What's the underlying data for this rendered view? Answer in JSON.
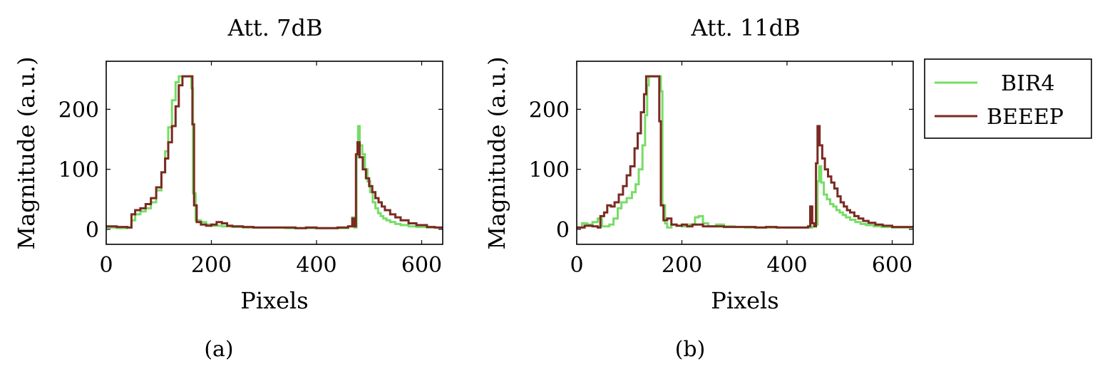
{
  "chart_data": [
    {
      "type": "line",
      "title": "Att. 7dB",
      "caption": "(a)",
      "xlabel": "Pixels",
      "ylabel": "Magnitude (a.u.)",
      "xlim": [
        0,
        640
      ],
      "ylim": [
        -25,
        280
      ],
      "xticks": [
        0,
        200,
        400,
        600
      ],
      "yticks": [
        0,
        100,
        200
      ],
      "series": [
        {
          "name": "BIR4",
          "color": "#77dd66",
          "points": [
            [
              0,
              3
            ],
            [
              20,
              2
            ],
            [
              40,
              3
            ],
            [
              48,
              15
            ],
            [
              55,
              25
            ],
            [
              65,
              30
            ],
            [
              75,
              35
            ],
            [
              85,
              45
            ],
            [
              95,
              65
            ],
            [
              105,
              95
            ],
            [
              112,
              130
            ],
            [
              118,
              170
            ],
            [
              125,
              215
            ],
            [
              132,
              245
            ],
            [
              138,
              255
            ],
            [
              160,
              255
            ],
            [
              162,
              235
            ],
            [
              165,
              60
            ],
            [
              170,
              15
            ],
            [
              180,
              12
            ],
            [
              190,
              8
            ],
            [
              200,
              6
            ],
            [
              220,
              5
            ],
            [
              240,
              4
            ],
            [
              260,
              3
            ],
            [
              280,
              3
            ],
            [
              300,
              3
            ],
            [
              320,
              3
            ],
            [
              340,
              2
            ],
            [
              360,
              2
            ],
            [
              380,
              2
            ],
            [
              400,
              2
            ],
            [
              420,
              2
            ],
            [
              440,
              2
            ],
            [
              460,
              5
            ],
            [
              468,
              20
            ],
            [
              472,
              3
            ],
            [
              476,
              120
            ],
            [
              479,
              172
            ],
            [
              482,
              140
            ],
            [
              487,
              125
            ],
            [
              492,
              100
            ],
            [
              497,
              80
            ],
            [
              502,
              62
            ],
            [
              507,
              45
            ],
            [
              512,
              35
            ],
            [
              517,
              27
            ],
            [
              522,
              22
            ],
            [
              527,
              18
            ],
            [
              533,
              15
            ],
            [
              540,
              12
            ],
            [
              550,
              9
            ],
            [
              560,
              7
            ],
            [
              575,
              5
            ],
            [
              590,
              4
            ],
            [
              610,
              3
            ],
            [
              625,
              3
            ],
            [
              640,
              3
            ]
          ]
        },
        {
          "name": "BEEEP",
          "color": "#7a2a22",
          "points": [
            [
              0,
              5
            ],
            [
              20,
              4
            ],
            [
              40,
              3
            ],
            [
              48,
              25
            ],
            [
              55,
              32
            ],
            [
              65,
              35
            ],
            [
              75,
              42
            ],
            [
              85,
              52
            ],
            [
              95,
              70
            ],
            [
              105,
              95
            ],
            [
              112,
              118
            ],
            [
              118,
              145
            ],
            [
              125,
              172
            ],
            [
              132,
              205
            ],
            [
              138,
              240
            ],
            [
              145,
              255
            ],
            [
              162,
              255
            ],
            [
              164,
              175
            ],
            [
              167,
              40
            ],
            [
              172,
              12
            ],
            [
              180,
              8
            ],
            [
              190,
              6
            ],
            [
              200,
              8
            ],
            [
              210,
              12
            ],
            [
              220,
              10
            ],
            [
              230,
              6
            ],
            [
              240,
              5
            ],
            [
              260,
              4
            ],
            [
              280,
              3
            ],
            [
              300,
              3
            ],
            [
              320,
              3
            ],
            [
              340,
              3
            ],
            [
              360,
              2
            ],
            [
              380,
              3
            ],
            [
              400,
              2
            ],
            [
              420,
              2
            ],
            [
              440,
              3
            ],
            [
              460,
              5
            ],
            [
              468,
              18
            ],
            [
              472,
              5
            ],
            [
              475,
              125
            ],
            [
              478,
              145
            ],
            [
              482,
              120
            ],
            [
              488,
              100
            ],
            [
              494,
              85
            ],
            [
              500,
              72
            ],
            [
              506,
              62
            ],
            [
              512,
              52
            ],
            [
              518,
              45
            ],
            [
              524,
              38
            ],
            [
              530,
              32
            ],
            [
              540,
              25
            ],
            [
              550,
              20
            ],
            [
              560,
              15
            ],
            [
              575,
              10
            ],
            [
              590,
              7
            ],
            [
              610,
              4
            ],
            [
              625,
              3
            ],
            [
              640,
              3
            ]
          ]
        }
      ]
    },
    {
      "type": "line",
      "title": "Att. 11dB",
      "caption": "(b)",
      "xlabel": "Pixels",
      "ylabel": "Magnitude (a.u.)",
      "xlim": [
        0,
        640
      ],
      "ylim": [
        -25,
        280
      ],
      "xticks": [
        0,
        200,
        400,
        600
      ],
      "yticks": [
        0,
        100,
        200
      ],
      "series": [
        {
          "name": "BIR4",
          "color": "#77dd66",
          "points": [
            [
              0,
              3
            ],
            [
              10,
              10
            ],
            [
              20,
              8
            ],
            [
              30,
              12
            ],
            [
              40,
              18
            ],
            [
              48,
              5
            ],
            [
              55,
              5
            ],
            [
              62,
              8
            ],
            [
              70,
              18
            ],
            [
              78,
              35
            ],
            [
              85,
              45
            ],
            [
              95,
              52
            ],
            [
              105,
              62
            ],
            [
              112,
              75
            ],
            [
              118,
              100
            ],
            [
              125,
              140
            ],
            [
              130,
              190
            ],
            [
              134,
              240
            ],
            [
              137,
              255
            ],
            [
              158,
              255
            ],
            [
              160,
              230
            ],
            [
              163,
              40
            ],
            [
              168,
              10
            ],
            [
              172,
              3
            ],
            [
              180,
              8
            ],
            [
              190,
              6
            ],
            [
              200,
              5
            ],
            [
              215,
              8
            ],
            [
              225,
              20
            ],
            [
              232,
              22
            ],
            [
              240,
              10
            ],
            [
              250,
              5
            ],
            [
              265,
              8
            ],
            [
              280,
              5
            ],
            [
              300,
              4
            ],
            [
              320,
              3
            ],
            [
              340,
              3
            ],
            [
              360,
              3
            ],
            [
              380,
              3
            ],
            [
              400,
              3
            ],
            [
              420,
              3
            ],
            [
              440,
              3
            ],
            [
              448,
              5
            ],
            [
              455,
              8
            ],
            [
              458,
              80
            ],
            [
              461,
              105
            ],
            [
              465,
              78
            ],
            [
              470,
              58
            ],
            [
              476,
              50
            ],
            [
              482,
              42
            ],
            [
              488,
              38
            ],
            [
              494,
              32
            ],
            [
              500,
              28
            ],
            [
              506,
              24
            ],
            [
              512,
              20
            ],
            [
              520,
              16
            ],
            [
              530,
              12
            ],
            [
              540,
              9
            ],
            [
              550,
              7
            ],
            [
              565,
              5
            ],
            [
              580,
              4
            ],
            [
              600,
              3
            ],
            [
              620,
              3
            ],
            [
              640,
              3
            ]
          ]
        },
        {
          "name": "BEEEP",
          "color": "#7a2a22",
          "points": [
            [
              0,
              3
            ],
            [
              15,
              6
            ],
            [
              30,
              5
            ],
            [
              40,
              3
            ],
            [
              45,
              22
            ],
            [
              52,
              28
            ],
            [
              58,
              40
            ],
            [
              65,
              38
            ],
            [
              72,
              45
            ],
            [
              80,
              58
            ],
            [
              88,
              72
            ],
            [
              95,
              90
            ],
            [
              102,
              105
            ],
            [
              110,
              135
            ],
            [
              116,
              160
            ],
            [
              122,
              195
            ],
            [
              128,
              225
            ],
            [
              132,
              255
            ],
            [
              155,
              255
            ],
            [
              157,
              180
            ],
            [
              160,
              40
            ],
            [
              165,
              15
            ],
            [
              172,
              18
            ],
            [
              180,
              8
            ],
            [
              190,
              6
            ],
            [
              200,
              8
            ],
            [
              210,
              5
            ],
            [
              220,
              8
            ],
            [
              240,
              5
            ],
            [
              260,
              5
            ],
            [
              280,
              4
            ],
            [
              300,
              4
            ],
            [
              320,
              4
            ],
            [
              340,
              3
            ],
            [
              360,
              4
            ],
            [
              380,
              3
            ],
            [
              400,
              3
            ],
            [
              420,
              3
            ],
            [
              440,
              5
            ],
            [
              444,
              38
            ],
            [
              448,
              10
            ],
            [
              452,
              5
            ],
            [
              455,
              110
            ],
            [
              458,
              172
            ],
            [
              462,
              140
            ],
            [
              467,
              118
            ],
            [
              472,
              100
            ],
            [
              478,
              88
            ],
            [
              484,
              78
            ],
            [
              490,
              68
            ],
            [
              496,
              55
            ],
            [
              502,
              45
            ],
            [
              508,
              38
            ],
            [
              514,
              32
            ],
            [
              520,
              28
            ],
            [
              528,
              22
            ],
            [
              536,
              18
            ],
            [
              545,
              14
            ],
            [
              555,
              11
            ],
            [
              568,
              8
            ],
            [
              582,
              6
            ],
            [
              600,
              4
            ],
            [
              620,
              4
            ],
            [
              640,
              4
            ]
          ]
        }
      ]
    }
  ],
  "legend": {
    "items": [
      {
        "label": "BIR4",
        "color": "#77dd66"
      },
      {
        "label": "BEEEP",
        "color": "#7a2a22"
      }
    ]
  }
}
